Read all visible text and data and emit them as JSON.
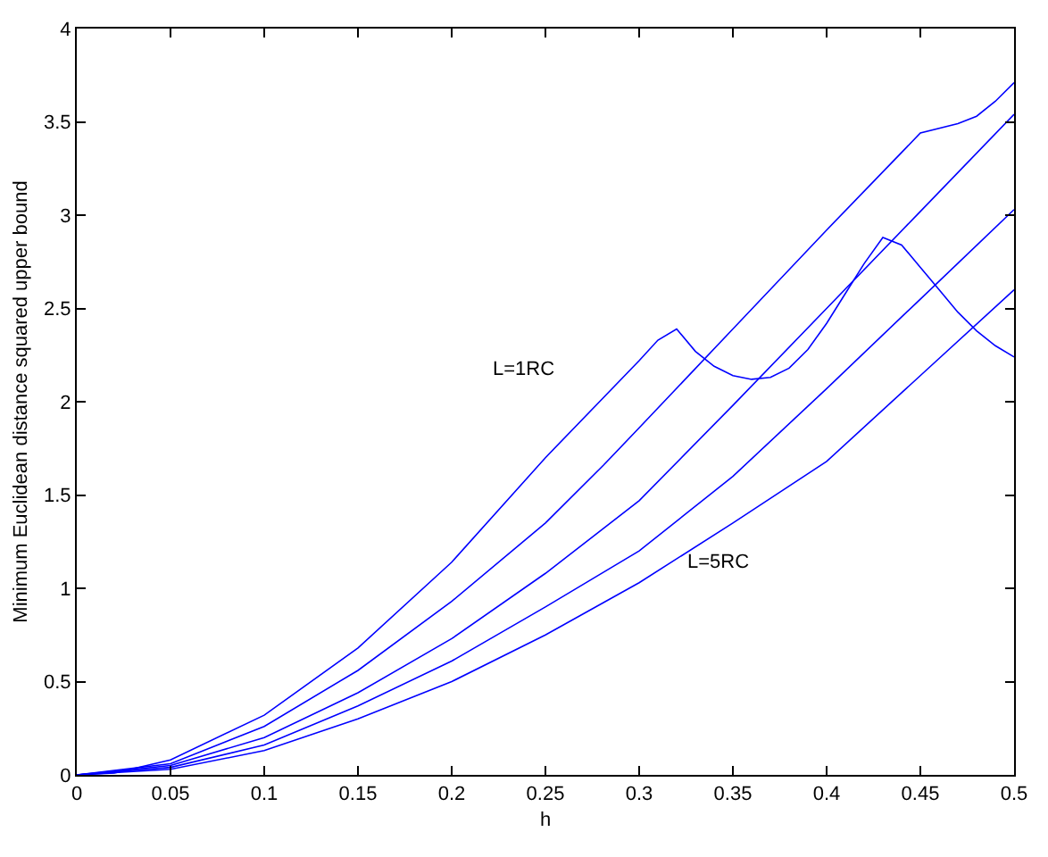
{
  "chart_data": {
    "type": "line",
    "xlabel": "h",
    "ylabel": "Minimum Euclidean distance squared upper bound",
    "xlim": [
      0,
      0.5
    ],
    "xticks": [
      0,
      0.05,
      0.1,
      0.15,
      0.2,
      0.25,
      0.3,
      0.35,
      0.4,
      0.45,
      0.5
    ],
    "ylim": [
      0,
      4
    ],
    "yticks": [
      0,
      0.5,
      1,
      1.5,
      2,
      2.5,
      3,
      3.5,
      4
    ],
    "marker": "none",
    "line_style": "solid",
    "series": [
      {
        "color": "#0000ff",
        "x": [
          0,
          0.02,
          0.05,
          0.1,
          0.15,
          0.2,
          0.25,
          0.3,
          0.31,
          0.32,
          0.33,
          0.34,
          0.35,
          0.36,
          0.37,
          0.38,
          0.39,
          0.4,
          0.41,
          0.42,
          0.43,
          0.44,
          0.45,
          0.46,
          0.47,
          0.48,
          0.49,
          0.5
        ],
        "values": [
          0,
          0.01,
          0.08,
          0.32,
          0.68,
          1.14,
          1.7,
          2.22,
          2.33,
          2.39,
          2.27,
          2.19,
          2.14,
          2.12,
          2.13,
          2.18,
          2.28,
          2.42,
          2.58,
          2.74,
          2.88,
          2.84,
          2.72,
          2.6,
          2.48,
          2.38,
          2.3,
          2.24
        ]
      },
      {
        "color": "#0000ff",
        "x": [
          0,
          0.05,
          0.1,
          0.15,
          0.2,
          0.25,
          0.281,
          0.3,
          0.35,
          0.4,
          0.45,
          0.47,
          0.48,
          0.49,
          0.5
        ],
        "values": [
          0,
          0.06,
          0.26,
          0.56,
          0.93,
          1.35,
          1.66,
          1.86,
          2.39,
          2.92,
          3.44,
          3.49,
          3.53,
          3.61,
          3.71
        ]
      },
      {
        "color": "#0000ff",
        "x": [
          0,
          0.05,
          0.1,
          0.15,
          0.2,
          0.25,
          0.3,
          0.35,
          0.4,
          0.45,
          0.5
        ],
        "values": [
          0,
          0.05,
          0.2,
          0.44,
          0.73,
          1.08,
          1.47,
          1.98,
          2.5,
          3.02,
          3.54
        ]
      },
      {
        "color": "#0000ff",
        "x": [
          0,
          0.05,
          0.1,
          0.15,
          0.2,
          0.25,
          0.3,
          0.35,
          0.4,
          0.45,
          0.5
        ],
        "values": [
          0,
          0.04,
          0.16,
          0.37,
          0.61,
          0.9,
          1.2,
          1.6,
          2.07,
          2.55,
          3.03
        ]
      },
      {
        "color": "#0000ff",
        "x": [
          0,
          0.05,
          0.1,
          0.15,
          0.2,
          0.25,
          0.3,
          0.35,
          0.4,
          0.45,
          0.5
        ],
        "values": [
          0,
          0.03,
          0.13,
          0.3,
          0.5,
          0.75,
          1.03,
          1.35,
          1.68,
          2.14,
          2.6
        ]
      }
    ],
    "annotations": [
      "L=1RC",
      "L=5RC"
    ]
  }
}
